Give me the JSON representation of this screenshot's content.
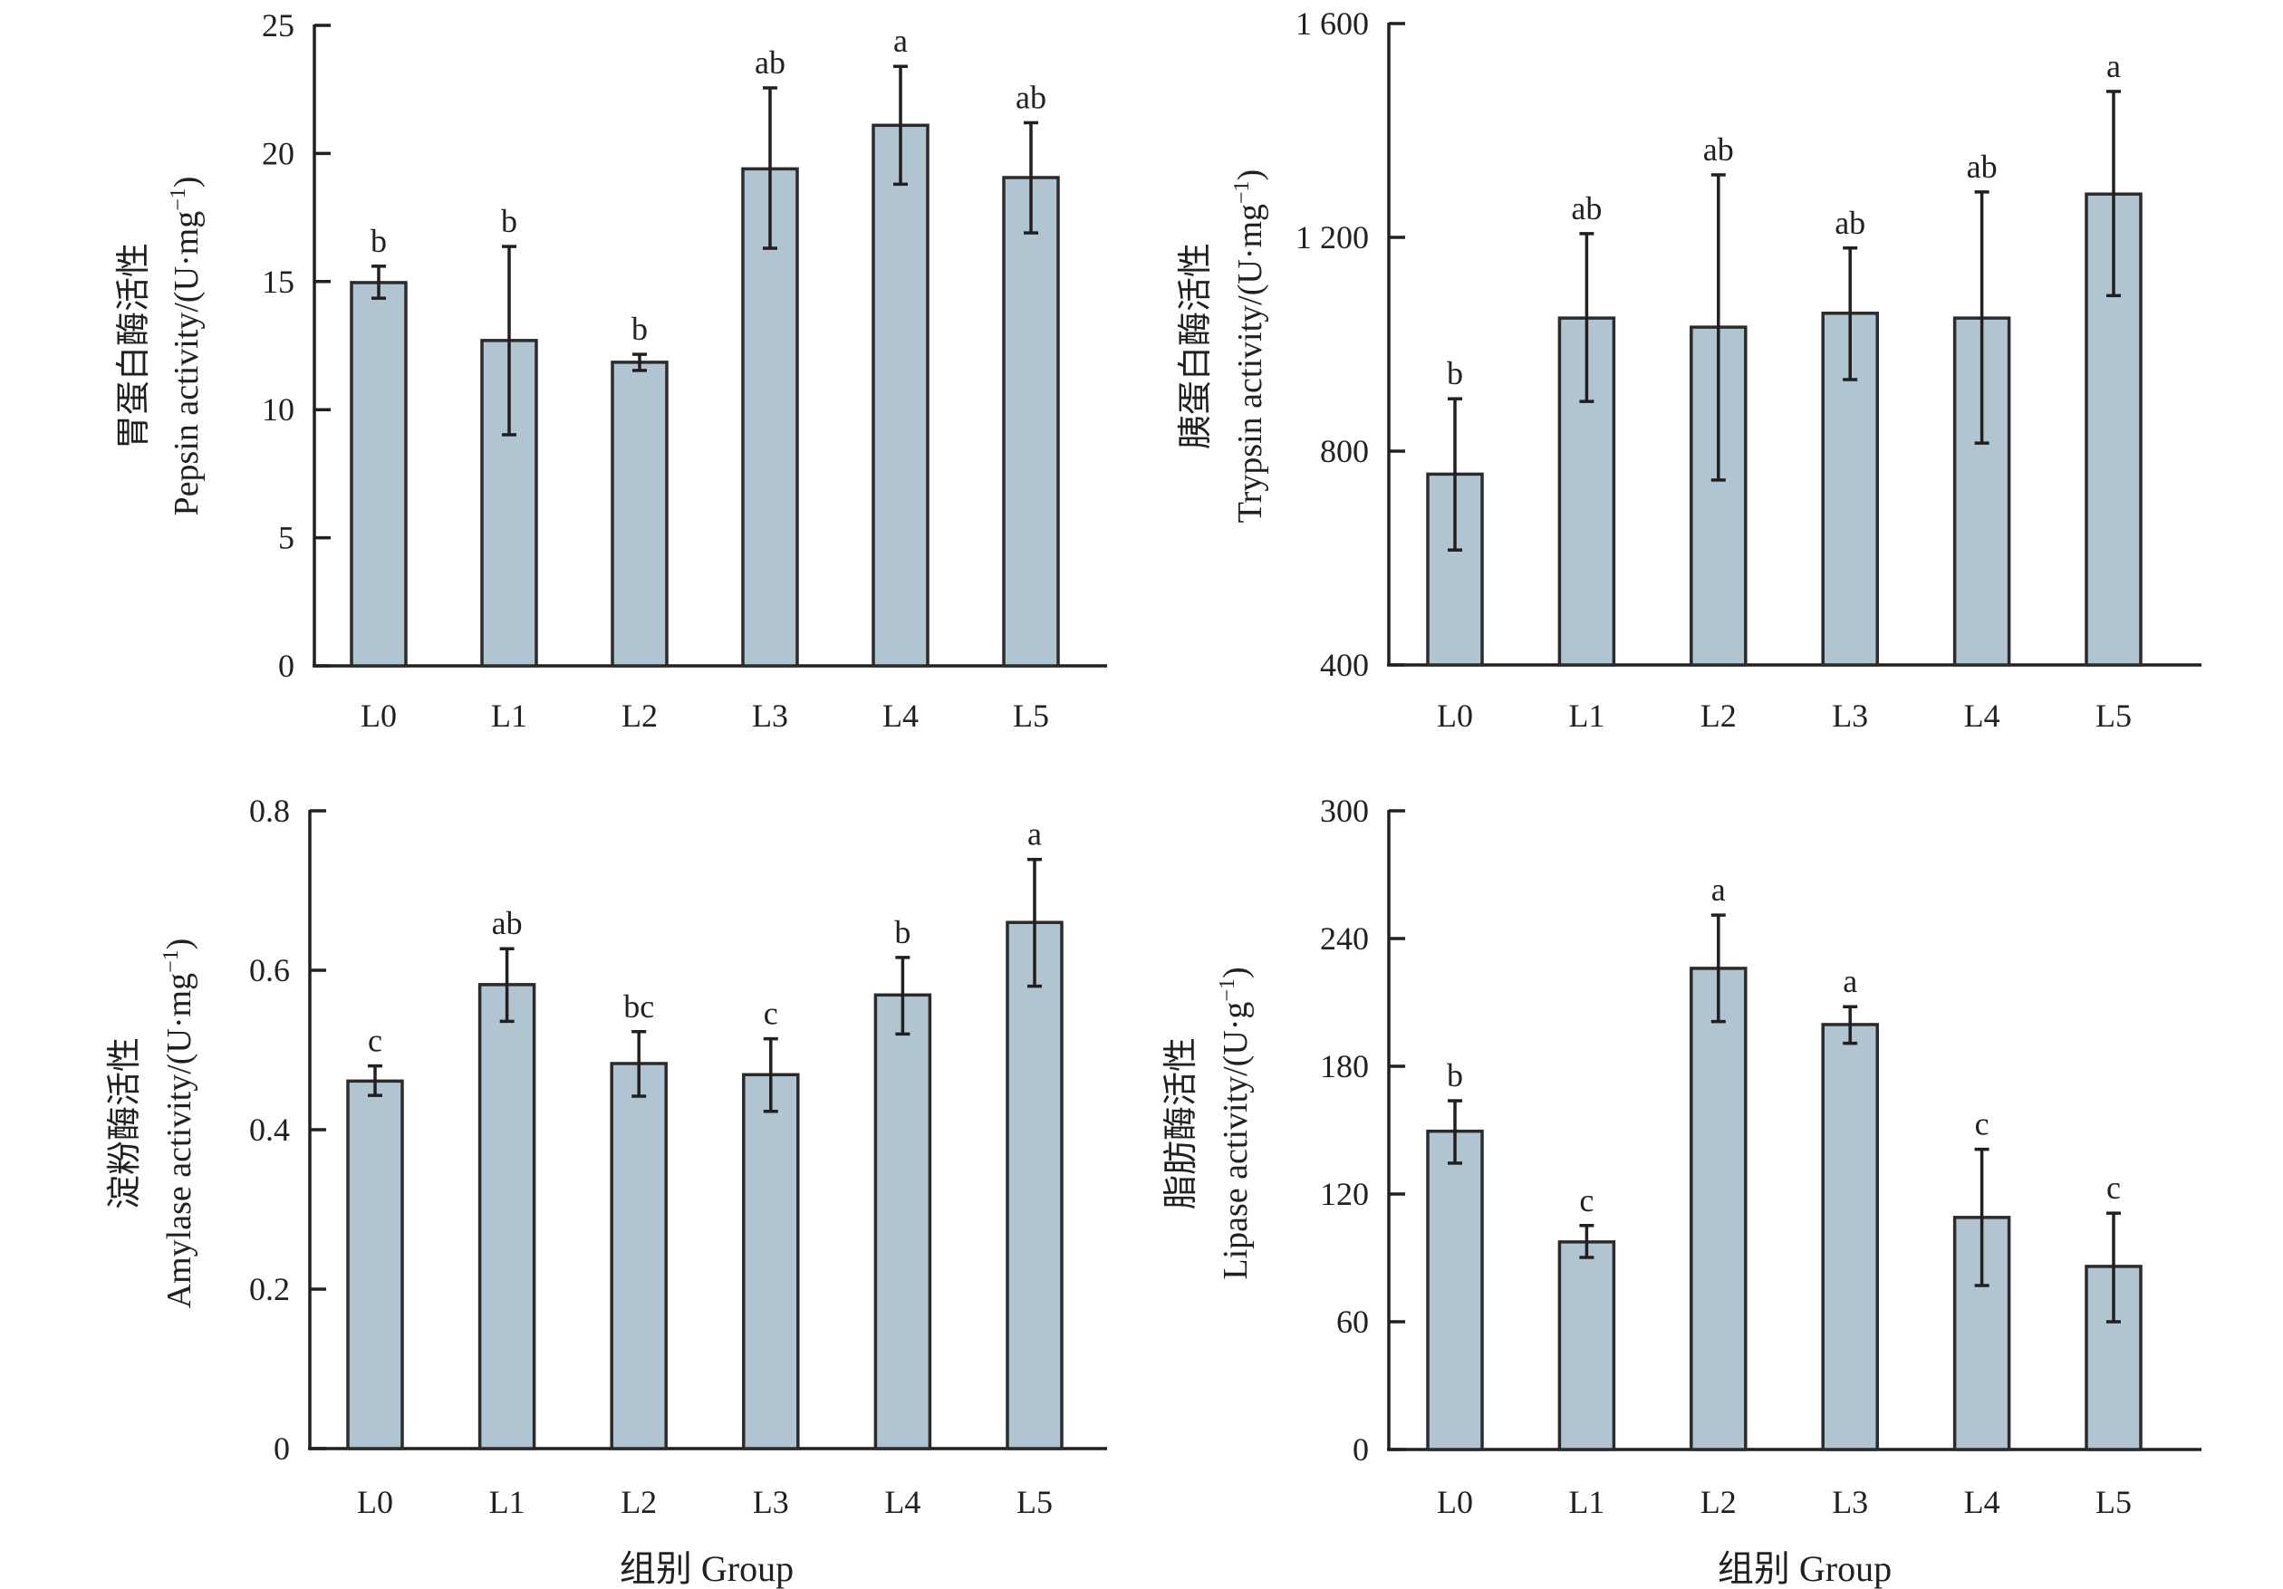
{
  "chart_data": [
    {
      "id": "pepsin",
      "type": "bar",
      "title": "",
      "ylabel_cn": "胃蛋白酶活性",
      "ylabel_en": "Pepsin activity/(U·mg",
      "ylabel_sup": "−1",
      "ylabel_close": ")",
      "xlabel": "",
      "categories": [
        "L0",
        "L1",
        "L2",
        "L3",
        "L4",
        "L5"
      ],
      "values": [
        14.96,
        12.7,
        11.85,
        19.4,
        21.1,
        19.06
      ],
      "error_upper": [
        15.6,
        16.37,
        12.16,
        22.56,
        23.4,
        21.2
      ],
      "error_lower": [
        14.35,
        9.02,
        11.53,
        16.3,
        18.8,
        16.9
      ],
      "significance": [
        "b",
        "b",
        "b",
        "ab",
        "a",
        "ab"
      ],
      "ylim": [
        0,
        25
      ],
      "yticks": [
        0,
        5,
        10,
        15,
        20,
        25
      ],
      "ytick_labels": [
        "0",
        "5",
        "10",
        "15",
        "20",
        "25"
      ],
      "grid": false,
      "bar_color": "#b0c4d1"
    },
    {
      "id": "trypsin",
      "type": "bar",
      "title": "",
      "ylabel_cn": "胰蛋白酶活性",
      "ylabel_en": "Trypsin activity/(U·mg",
      "ylabel_sup": "−1",
      "ylabel_close": ")",
      "xlabel": "",
      "categories": [
        "L0",
        "L1",
        "L2",
        "L3",
        "L4",
        "L5"
      ],
      "values": [
        757,
        1049,
        1032,
        1058,
        1049,
        1281
      ],
      "error_upper": [
        898,
        1207,
        1317,
        1180,
        1285,
        1473
      ],
      "error_lower": [
        615,
        893,
        746,
        934,
        815,
        1091
      ],
      "significance": [
        "b",
        "ab",
        "ab",
        "ab",
        "ab",
        "a"
      ],
      "ylim": [
        400,
        1600
      ],
      "yticks": [
        400,
        800,
        1200,
        1600
      ],
      "ytick_labels": [
        "400",
        "800",
        "1 200",
        "1 600"
      ],
      "grid": false,
      "bar_color": "#b0c4d1"
    },
    {
      "id": "amylase",
      "type": "bar",
      "title": "",
      "ylabel_cn": "淀粉酶活性",
      "ylabel_en": "Amylase activity/(U·mg",
      "ylabel_sup": "−1",
      "ylabel_close": ")",
      "xlabel": "组别 Group",
      "categories": [
        "L0",
        "L1",
        "L2",
        "L3",
        "L4",
        "L5"
      ],
      "values": [
        0.461,
        0.582,
        0.483,
        0.469,
        0.569,
        0.66
      ],
      "error_upper": [
        0.48,
        0.627,
        0.523,
        0.514,
        0.616,
        0.739
      ],
      "error_lower": [
        0.443,
        0.536,
        0.442,
        0.423,
        0.52,
        0.58
      ],
      "significance": [
        "c",
        "ab",
        "bc",
        "c",
        "b",
        "a"
      ],
      "ylim": [
        0,
        0.8
      ],
      "yticks": [
        0,
        0.2,
        0.4,
        0.6,
        0.8
      ],
      "ytick_labels": [
        "0",
        "0.2",
        "0.4",
        "0.6",
        "0.8"
      ],
      "grid": false,
      "bar_color": "#b0c4d1"
    },
    {
      "id": "lipase",
      "type": "bar",
      "title": "",
      "ylabel_cn": "脂肪酶活性",
      "ylabel_en": "Lipase activity/(U·g",
      "ylabel_sup": "−1",
      "ylabel_close": ")",
      "xlabel": "组别 Group",
      "categories": [
        "L0",
        "L1",
        "L2",
        "L3",
        "L4",
        "L5"
      ],
      "values": [
        149.5,
        97.5,
        226,
        199.6,
        109,
        86
      ],
      "error_upper": [
        163.8,
        105.2,
        251,
        208,
        141,
        111
      ],
      "error_lower": [
        134.5,
        90.2,
        201,
        190.8,
        77,
        60
      ],
      "significance": [
        "b",
        "c",
        "a",
        "a",
        "c",
        "c"
      ],
      "ylim": [
        0,
        300
      ],
      "yticks": [
        0,
        60,
        120,
        180,
        240,
        300
      ],
      "ytick_labels": [
        "0",
        "60",
        "120",
        "180",
        "240",
        "300"
      ],
      "grid": false,
      "bar_color": "#b0c4d1"
    }
  ]
}
